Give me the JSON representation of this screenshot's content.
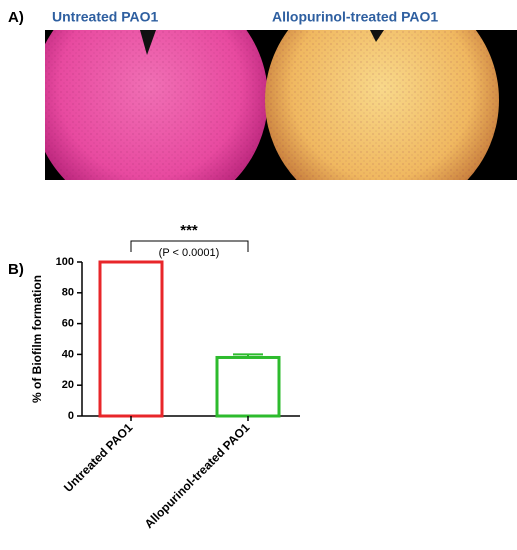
{
  "figure": {
    "panel_a_label": "A)",
    "panel_a_images": [
      "Untreated PAO1",
      "Allopurinol-treated PAO1"
    ],
    "panel_b_label": "B)"
  },
  "chart_data": {
    "type": "bar",
    "y_label": "% of Biofilm formation",
    "categories": [
      "Untreated PAO1",
      "Allopurinol-treated PAO1"
    ],
    "values": [
      100,
      38
    ],
    "errors": [
      0,
      2
    ],
    "colors": [
      "#e8262a",
      "#2dbb2d"
    ],
    "ylim": [
      0,
      100
    ],
    "yticks": [
      0,
      20,
      40,
      60,
      80,
      100
    ],
    "annotations": [
      "***",
      "(P < 0.0001)"
    ]
  }
}
